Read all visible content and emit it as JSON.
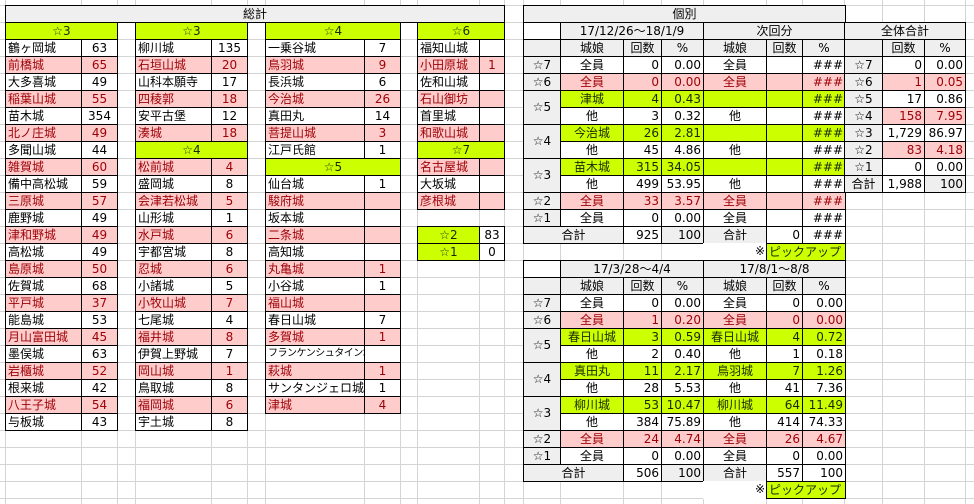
{
  "colors": {
    "pickup": "#ccff00",
    "alternate_row": "#ffcccc",
    "header": "#efefef"
  },
  "summary": {
    "title": "総計",
    "columns": [
      {
        "sections": [
          {
            "header": "☆3",
            "rows": [
              [
                "鶴ヶ岡城",
                "63"
              ],
              [
                "前橋城",
                "65"
              ],
              [
                "大多喜城",
                "49"
              ],
              [
                "稲葉山城",
                "55"
              ],
              [
                "苗木城",
                "354"
              ],
              [
                "北ノ庄城",
                "49"
              ],
              [
                "多聞山城",
                "44"
              ],
              [
                "雑賀城",
                "60"
              ],
              [
                "備中高松城",
                "59"
              ],
              [
                "三原城",
                "57"
              ],
              [
                "鹿野城",
                "49"
              ],
              [
                "津和野城",
                "49"
              ],
              [
                "高松城",
                "49"
              ],
              [
                "島原城",
                "50"
              ],
              [
                "佐賀城",
                "68"
              ],
              [
                "平戸城",
                "37"
              ],
              [
                "能島城",
                "53"
              ],
              [
                "月山富田城",
                "45"
              ],
              [
                "墨俣城",
                "63"
              ],
              [
                "岩櫃城",
                "52"
              ],
              [
                "根来城",
                "42"
              ],
              [
                "八王子城",
                "54"
              ],
              [
                "与板城",
                "43"
              ]
            ]
          }
        ]
      },
      {
        "sections": [
          {
            "header": "☆3",
            "rows": [
              [
                "柳川城",
                "135"
              ],
              [
                "石垣山城",
                "20"
              ],
              [
                "山科本願寺",
                "17"
              ],
              [
                "四稜郭",
                "18"
              ],
              [
                "安平古堡",
                "12"
              ],
              [
                "湊城",
                "18"
              ]
            ]
          },
          {
            "header": "☆4",
            "rows": [
              [
                "松前城",
                "4"
              ],
              [
                "盛岡城",
                "8"
              ],
              [
                "会津若松城",
                "5"
              ],
              [
                "山形城",
                "1"
              ],
              [
                "水戸城",
                "6"
              ],
              [
                "宇都宮城",
                "8"
              ],
              [
                "忍城",
                "6"
              ],
              [
                "小諸城",
                "5"
              ],
              [
                "小牧山城",
                "7"
              ],
              [
                "七尾城",
                "4"
              ],
              [
                "福井城",
                "8"
              ],
              [
                "伊賀上野城",
                "7"
              ],
              [
                "岡山城",
                "1"
              ],
              [
                "鳥取城",
                "8"
              ],
              [
                "福岡城",
                "6"
              ],
              [
                "宇土城",
                "8"
              ]
            ]
          }
        ]
      },
      {
        "sections": [
          {
            "header": "☆4",
            "rows": [
              [
                "一乗谷城",
                "7"
              ],
              [
                "鳥羽城",
                "9"
              ],
              [
                "長浜城",
                "6"
              ],
              [
                "今治城",
                "26"
              ],
              [
                "真田丸",
                "14"
              ],
              [
                "菩提山城",
                "3"
              ],
              [
                "江戸氏館",
                "1"
              ]
            ]
          },
          {
            "header": "☆5",
            "rows": [
              [
                "仙台城",
                "1"
              ],
              [
                "駿府城",
                ""
              ],
              [
                "坂本城",
                ""
              ],
              [
                "二条城",
                ""
              ],
              [
                "高知城",
                ""
              ],
              [
                "丸亀城",
                "1"
              ],
              [
                "小谷城",
                "1"
              ],
              [
                "福山城",
                ""
              ],
              [
                "春日山城",
                "7"
              ],
              [
                "多賀城",
                "1"
              ],
              [
                "フランケンシュタイン城",
                ""
              ],
              [
                "萩城",
                "1"
              ],
              [
                "サンタンジェロ城",
                "1"
              ],
              [
                "津城",
                "4"
              ]
            ]
          }
        ]
      },
      {
        "sections": [
          {
            "header": "☆6",
            "rows": [
              [
                "福知山城",
                ""
              ],
              [
                "小田原城",
                "1"
              ],
              [
                "佐和山城",
                ""
              ],
              [
                "石山御坊",
                ""
              ],
              [
                "首里城",
                ""
              ],
              [
                "和歌山城",
                ""
              ]
            ]
          },
          {
            "header": "☆7",
            "rows": [
              [
                "名古屋城",
                ""
              ],
              [
                "大坂城",
                ""
              ],
              [
                "彦根城",
                ""
              ]
            ]
          }
        ]
      }
    ],
    "extra": [
      [
        "☆2",
        "83"
      ],
      [
        "☆1",
        "0"
      ]
    ]
  },
  "individual": {
    "title": "個別",
    "star_rows": [
      {
        "label": "☆7",
        "span": 1
      },
      {
        "label": "☆6",
        "span": 1
      },
      {
        "label": "☆5",
        "span": 2
      },
      {
        "label": "☆4",
        "span": 2
      },
      {
        "label": "☆3",
        "span": 2
      },
      {
        "label": "☆2",
        "span": 1
      },
      {
        "label": "☆1",
        "span": 1
      }
    ],
    "col_headers": [
      "城娘",
      "回数",
      "%"
    ],
    "pickup_mark": "※",
    "pickup_label": "ピックアップ",
    "sections": [
      {
        "periods": [
          {
            "label": "17/12/26～18/1/9",
            "rows": [
              {
                "name": "全員",
                "count": "0",
                "pct": "0.00",
                "style": "white"
              },
              {
                "name": "全員",
                "count": "0",
                "pct": "0.00",
                "style": "pink"
              },
              {
                "name": "津城",
                "count": "4",
                "pct": "0.43",
                "style": "lime"
              },
              {
                "name": "他",
                "count": "3",
                "pct": "0.32",
                "style": "white"
              },
              {
                "name": "今治城",
                "count": "26",
                "pct": "2.81",
                "style": "lime"
              },
              {
                "name": "他",
                "count": "45",
                "pct": "4.86",
                "style": "white"
              },
              {
                "name": "苗木城",
                "count": "315",
                "pct": "34.05",
                "style": "lime"
              },
              {
                "name": "他",
                "count": "499",
                "pct": "53.95",
                "style": "white"
              },
              {
                "name": "全員",
                "count": "33",
                "pct": "3.57",
                "style": "pink"
              },
              {
                "name": "全員",
                "count": "0",
                "pct": "0.00",
                "style": "white"
              }
            ],
            "total": {
              "label": "合計",
              "count": "925",
              "pct": "100"
            }
          },
          {
            "label": "次回分",
            "rows": [
              {
                "name": "全員",
                "count": "",
                "pct": "###",
                "style": "white"
              },
              {
                "name": "全員",
                "count": "",
                "pct": "###",
                "style": "pink"
              },
              {
                "name": "",
                "count": "",
                "pct": "###",
                "style": "lime"
              },
              {
                "name": "他",
                "count": "",
                "pct": "###",
                "style": "white"
              },
              {
                "name": "",
                "count": "",
                "pct": "###",
                "style": "lime"
              },
              {
                "name": "他",
                "count": "",
                "pct": "###",
                "style": "white"
              },
              {
                "name": "",
                "count": "",
                "pct": "###",
                "style": "lime"
              },
              {
                "name": "他",
                "count": "",
                "pct": "###",
                "style": "white"
              },
              {
                "name": "全員",
                "count": "",
                "pct": "###",
                "style": "pink"
              },
              {
                "name": "全員",
                "count": "",
                "pct": "###",
                "style": "white"
              }
            ],
            "total": {
              "label": "合計",
              "count": "0",
              "pct": "###"
            }
          }
        ]
      },
      {
        "periods": [
          {
            "label": "17/3/28～4/4",
            "rows": [
              {
                "name": "全員",
                "count": "0",
                "pct": "0.00",
                "style": "white"
              },
              {
                "name": "全員",
                "count": "1",
                "pct": "0.20",
                "style": "pink"
              },
              {
                "name": "春日山城",
                "count": "3",
                "pct": "0.59",
                "style": "lime"
              },
              {
                "name": "他",
                "count": "2",
                "pct": "0.40",
                "style": "white"
              },
              {
                "name": "真田丸",
                "count": "11",
                "pct": "2.17",
                "style": "lime"
              },
              {
                "name": "他",
                "count": "28",
                "pct": "5.53",
                "style": "white"
              },
              {
                "name": "柳川城",
                "count": "53",
                "pct": "10.47",
                "style": "lime"
              },
              {
                "name": "他",
                "count": "384",
                "pct": "75.89",
                "style": "white"
              },
              {
                "name": "全員",
                "count": "24",
                "pct": "4.74",
                "style": "pink"
              },
              {
                "name": "全員",
                "count": "0",
                "pct": "0.00",
                "style": "white"
              }
            ],
            "total": {
              "label": "合計",
              "count": "506",
              "pct": "100"
            }
          },
          {
            "label": "17/8/1～8/8",
            "rows": [
              {
                "name": "全員",
                "count": "0",
                "pct": "0.00",
                "style": "white"
              },
              {
                "name": "全員",
                "count": "0",
                "pct": "0.00",
                "style": "pink"
              },
              {
                "name": "春日山城",
                "count": "4",
                "pct": "0.72",
                "style": "lime"
              },
              {
                "name": "他",
                "count": "1",
                "pct": "0.18",
                "style": "white"
              },
              {
                "name": "鳥羽城",
                "count": "7",
                "pct": "1.26",
                "style": "lime"
              },
              {
                "name": "他",
                "count": "41",
                "pct": "7.36",
                "style": "white"
              },
              {
                "name": "柳川城",
                "count": "64",
                "pct": "11.49",
                "style": "lime"
              },
              {
                "name": "他",
                "count": "414",
                "pct": "74.33",
                "style": "white"
              },
              {
                "name": "全員",
                "count": "26",
                "pct": "4.67",
                "style": "pink"
              },
              {
                "name": "全員",
                "count": "0",
                "pct": "0.00",
                "style": "white"
              }
            ],
            "total": {
              "label": "合計",
              "count": "557",
              "pct": "100"
            }
          }
        ]
      }
    ]
  },
  "overall": {
    "title": "全体合計",
    "headers": [
      "",
      "回数",
      "%"
    ],
    "rows": [
      {
        "label": "☆7",
        "count": "0",
        "pct": "0.00",
        "style": "white"
      },
      {
        "label": "☆6",
        "count": "1",
        "pct": "0.05",
        "style": "pink"
      },
      {
        "label": "☆5",
        "count": "17",
        "pct": "0.86",
        "style": "white"
      },
      {
        "label": "☆4",
        "count": "158",
        "pct": "7.95",
        "style": "pink"
      },
      {
        "label": "☆3",
        "count": "1,729",
        "pct": "86.97",
        "style": "white"
      },
      {
        "label": "☆2",
        "count": "83",
        "pct": "4.18",
        "style": "pink"
      },
      {
        "label": "☆1",
        "count": "0",
        "pct": "0.00",
        "style": "white"
      }
    ],
    "total": {
      "label": "合計",
      "count": "1,988",
      "pct": "100"
    }
  }
}
